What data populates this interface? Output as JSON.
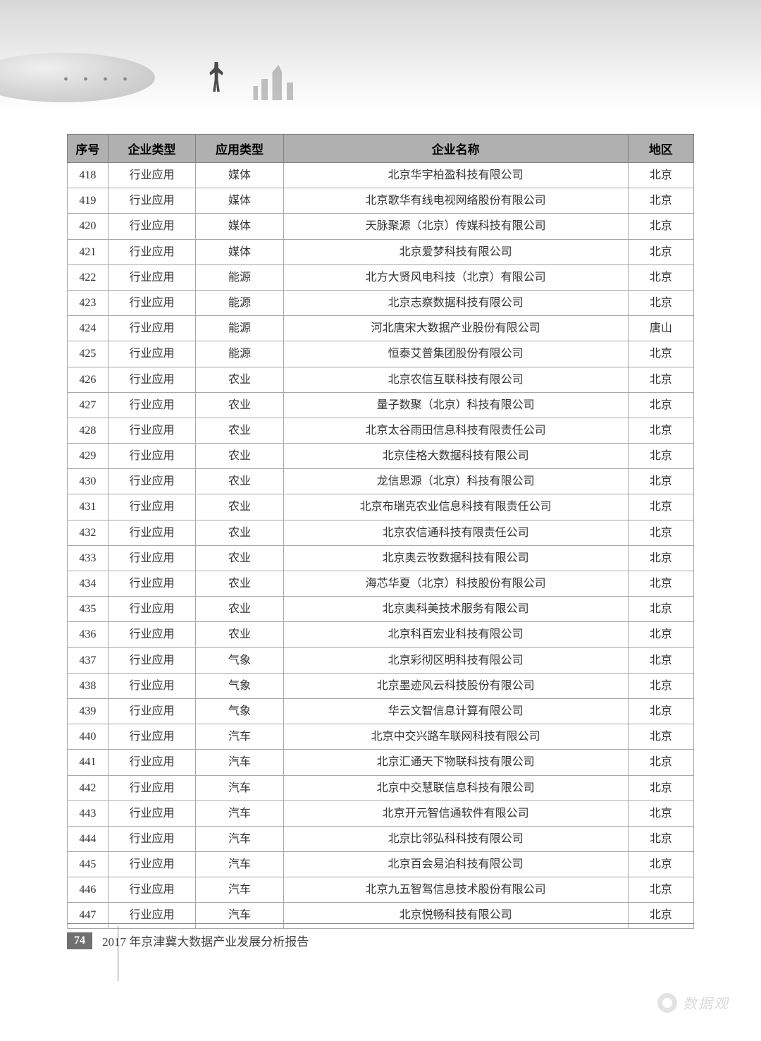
{
  "table": {
    "columns": [
      "序号",
      "企业类型",
      "应用类型",
      "企业名称",
      "地区"
    ],
    "column_widths_pct": [
      6.5,
      14,
      14,
      55,
      10.5
    ],
    "header_bg": "#b0b0b0",
    "border_color": "#a8a8a8",
    "header_border_color": "#808080",
    "font_size": 16,
    "header_font_size": 17,
    "rows": [
      [
        "418",
        "行业应用",
        "媒体",
        "北京华宇柏盈科技有限公司",
        "北京"
      ],
      [
        "419",
        "行业应用",
        "媒体",
        "北京歌华有线电视网络股份有限公司",
        "北京"
      ],
      [
        "420",
        "行业应用",
        "媒体",
        "天脉聚源（北京）传媒科技有限公司",
        "北京"
      ],
      [
        "421",
        "行业应用",
        "媒体",
        "北京爱梦科技有限公司",
        "北京"
      ],
      [
        "422",
        "行业应用",
        "能源",
        "北方大贤风电科技（北京）有限公司",
        "北京"
      ],
      [
        "423",
        "行业应用",
        "能源",
        "北京志察数据科技有限公司",
        "北京"
      ],
      [
        "424",
        "行业应用",
        "能源",
        "河北唐宋大数据产业股份有限公司",
        "唐山"
      ],
      [
        "425",
        "行业应用",
        "能源",
        "恒泰艾普集团股份有限公司",
        "北京"
      ],
      [
        "426",
        "行业应用",
        "农业",
        "北京农信互联科技有限公司",
        "北京"
      ],
      [
        "427",
        "行业应用",
        "农业",
        "量子数聚（北京）科技有限公司",
        "北京"
      ],
      [
        "428",
        "行业应用",
        "农业",
        "北京太谷雨田信息科技有限责任公司",
        "北京"
      ],
      [
        "429",
        "行业应用",
        "农业",
        "北京佳格大数据科技有限公司",
        "北京"
      ],
      [
        "430",
        "行业应用",
        "农业",
        "龙信思源（北京）科技有限公司",
        "北京"
      ],
      [
        "431",
        "行业应用",
        "农业",
        "北京布瑞克农业信息科技有限责任公司",
        "北京"
      ],
      [
        "432",
        "行业应用",
        "农业",
        "北京农信通科技有限责任公司",
        "北京"
      ],
      [
        "433",
        "行业应用",
        "农业",
        "北京奥云牧数据科技有限公司",
        "北京"
      ],
      [
        "434",
        "行业应用",
        "农业",
        "海芯华夏（北京）科技股份有限公司",
        "北京"
      ],
      [
        "435",
        "行业应用",
        "农业",
        "北京奥科美技术服务有限公司",
        "北京"
      ],
      [
        "436",
        "行业应用",
        "农业",
        "北京科百宏业科技有限公司",
        "北京"
      ],
      [
        "437",
        "行业应用",
        "气象",
        "北京彩彻区明科技有限公司",
        "北京"
      ],
      [
        "438",
        "行业应用",
        "气象",
        "北京墨迹风云科技股份有限公司",
        "北京"
      ],
      [
        "439",
        "行业应用",
        "气象",
        "华云文智信息计算有限公司",
        "北京"
      ],
      [
        "440",
        "行业应用",
        "汽车",
        "北京中交兴路车联网科技有限公司",
        "北京"
      ],
      [
        "441",
        "行业应用",
        "汽车",
        "北京汇通天下物联科技有限公司",
        "北京"
      ],
      [
        "442",
        "行业应用",
        "汽车",
        "北京中交慧联信息科技有限公司",
        "北京"
      ],
      [
        "443",
        "行业应用",
        "汽车",
        "北京开元智信通软件有限公司",
        "北京"
      ],
      [
        "444",
        "行业应用",
        "汽车",
        "北京比邻弘科科技有限公司",
        "北京"
      ],
      [
        "445",
        "行业应用",
        "汽车",
        "北京百会易泊科技有限公司",
        "北京"
      ],
      [
        "446",
        "行业应用",
        "汽车",
        "北京九五智驾信息技术股份有限公司",
        "北京"
      ],
      [
        "447",
        "行业应用",
        "汽车",
        "北京悦畅科技有限公司",
        "北京"
      ]
    ]
  },
  "footer": {
    "page_number": "74",
    "report_title": "2017 年京津冀大数据产业发展分析报告"
  },
  "watermark": {
    "text": "数据观"
  }
}
